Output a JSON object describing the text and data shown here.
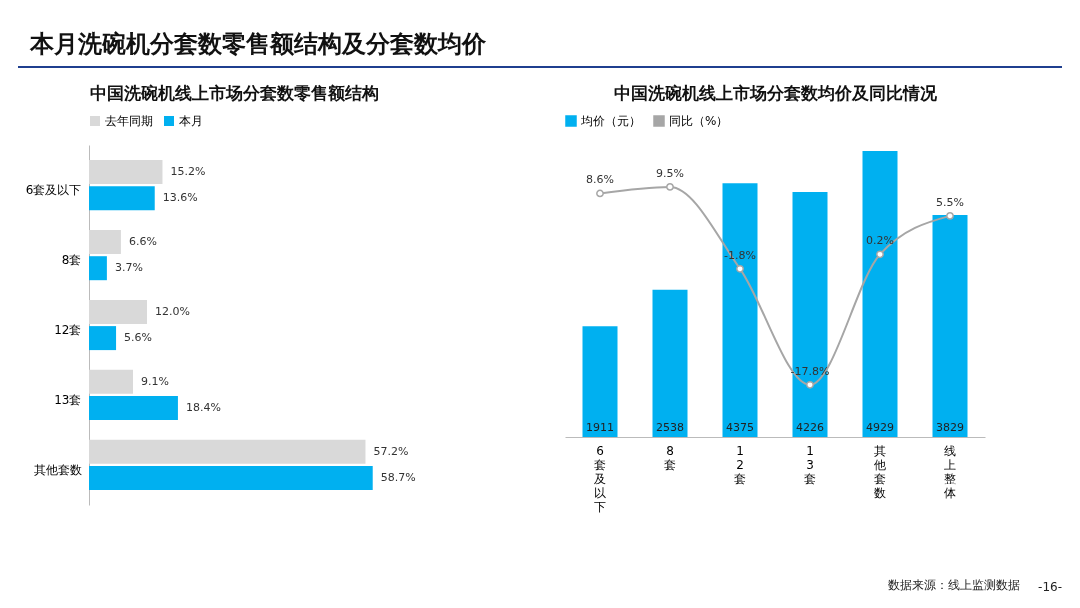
{
  "chart_data": [
    {
      "type": "other",
      "title": "本月洗碗机分套数零售额结构及分套数均价",
      "annotations": [
        "数据来源：线上监测数据",
        "-16-"
      ]
    },
    {
      "type": "bar",
      "title": "中国洗碗机线上市场分套数零售额结构",
      "orientation": "horizontal",
      "categories": [
        "6套及以下",
        "8套",
        "12套",
        "13套",
        "其他套数"
      ],
      "legend": "top",
      "tick_labels": "y",
      "series": [
        {
          "name": "去年同期",
          "color": "#d9d9d9",
          "values": [
            15.2,
            6.6,
            12.0,
            9.1,
            57.2
          ],
          "value_labels": [
            "15.2%",
            "6.6%",
            "12.0%",
            "9.1%",
            "57.2%"
          ]
        },
        {
          "name": "本月",
          "color": "#00b0f0",
          "values": [
            13.6,
            3.7,
            5.6,
            18.4,
            58.7
          ],
          "value_labels": [
            "13.6%",
            "3.7%",
            "5.6%",
            "18.4%",
            "58.7%"
          ]
        }
      ]
    },
    {
      "type": "bar",
      "title": "中国洗碗机线上市场分套数均价及同比情况",
      "categories": [
        "6套及以下",
        "8套",
        "12套",
        "13套",
        "其他套数",
        "线上整体"
      ],
      "legend": "top",
      "tick_labels": "x",
      "series": [
        {
          "name": "均价（元）",
          "type": "bar",
          "color": "#00b0f0",
          "values": [
            1911,
            2538,
            4375,
            4226,
            4929,
            3829
          ],
          "value_labels": [
            "1911",
            "2538",
            "4375",
            "4226",
            "4929",
            "3829"
          ]
        },
        {
          "name": "同比（%）",
          "type": "line",
          "axis": "y2",
          "color": "#a6a6a6",
          "marker": "circle",
          "line_style": "solid",
          "values": [
            8.6,
            9.5,
            -1.8,
            -17.8,
            0.2,
            5.5
          ],
          "value_labels": [
            "8.6%",
            "9.5%",
            "-1.8%",
            "-17.8%",
            "0.2%",
            "5.5%"
          ]
        }
      ]
    }
  ]
}
